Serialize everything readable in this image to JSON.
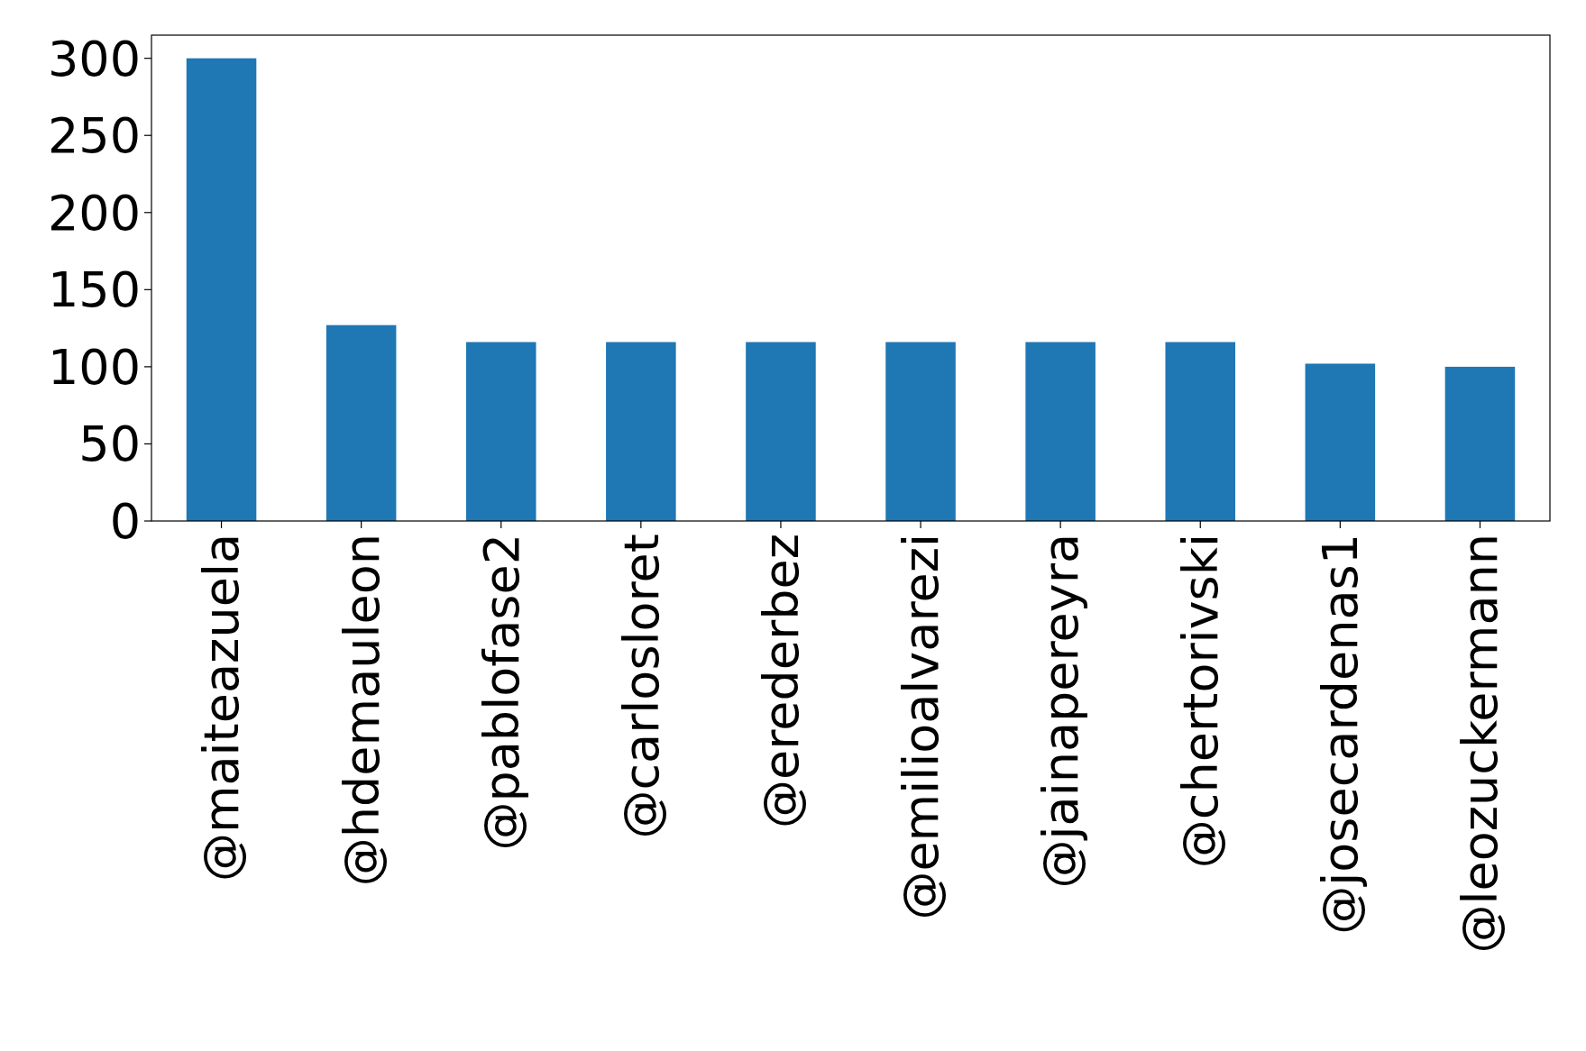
{
  "chart_data": {
    "type": "bar",
    "categories": [
      "@maiteazuela",
      "@hdemauleon",
      "@pablofase2",
      "@carlosloret",
      "@erederbez",
      "@emilioalvarezi",
      "@jainapereyra",
      "@chertorivski",
      "@josecardenas1",
      "@leozuckermann"
    ],
    "values": [
      300,
      127,
      116,
      116,
      116,
      116,
      116,
      116,
      102,
      100
    ],
    "color": "#1f77b4",
    "ylim": [
      0,
      315
    ],
    "yticks": [
      0,
      50,
      100,
      150,
      200,
      250,
      300
    ],
    "grid": false
  }
}
